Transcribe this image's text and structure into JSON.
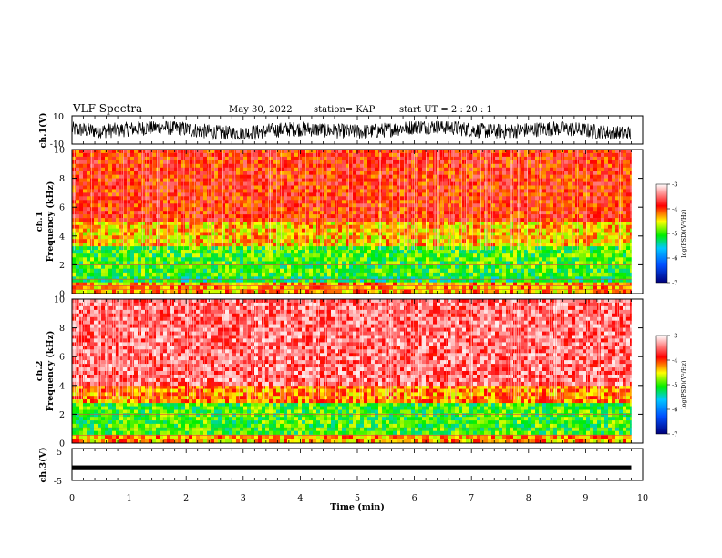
{
  "header": {
    "title": "VLF Spectra",
    "date": "May 30, 2022",
    "station": "station= KAP",
    "start": "start  UT =   2 : 20 : 1"
  },
  "chart_data": [
    {
      "type": "line",
      "name": "ch1-waveform",
      "ylabel": "ch.1(V)",
      "ylim": [
        -10,
        10
      ],
      "yticks": [
        "10",
        "-10"
      ],
      "x_range": [
        0,
        9.8
      ],
      "y_envelope_approx": [
        -6,
        6
      ],
      "color": "#000000"
    },
    {
      "type": "heatmap",
      "name": "ch1-spectrogram",
      "ylabel": "ch.1\nFrequency  (kHz)",
      "ylim": [
        0,
        10
      ],
      "yticks": [
        "0",
        "2",
        "4",
        "6",
        "8",
        "10"
      ],
      "x_range": [
        0,
        9.8
      ],
      "bands_khz": [
        {
          "from": 0.0,
          "to": 0.8,
          "level": -4.3
        },
        {
          "from": 0.8,
          "to": 1.2,
          "level": -5.2
        },
        {
          "from": 1.2,
          "to": 3.3,
          "level": -5.0
        },
        {
          "from": 3.3,
          "to": 5.0,
          "level": -4.4
        },
        {
          "from": 5.0,
          "to": 10.0,
          "level": -3.9
        }
      ],
      "colorbar": {
        "label": "log(PSD)(V²/Hz)",
        "range": [
          -7,
          -3
        ],
        "ticks": [
          "-3",
          "-4",
          "-5",
          "-6",
          "-7"
        ]
      }
    },
    {
      "type": "heatmap",
      "name": "ch2-spectrogram",
      "ylabel": "ch.2\nFrequency  (kHz)",
      "ylim": [
        0,
        10
      ],
      "yticks": [
        "0",
        "2",
        "4",
        "6",
        "8",
        "10"
      ],
      "x_range": [
        0,
        9.8
      ],
      "bands_khz": [
        {
          "from": 0.0,
          "to": 0.6,
          "level": -4.3
        },
        {
          "from": 0.6,
          "to": 2.8,
          "level": -5.0
        },
        {
          "from": 2.8,
          "to": 4.0,
          "level": -4.2
        },
        {
          "from": 4.0,
          "to": 10.0,
          "level": -3.5
        }
      ],
      "colorbar": {
        "label": "log(PSD)(V²/Hz)",
        "range": [
          -7,
          -3
        ],
        "ticks": [
          "-3",
          "-4",
          "-5",
          "-6",
          "-7"
        ]
      }
    },
    {
      "type": "line",
      "name": "ch3-waveform",
      "ylabel": "ch.3(V)",
      "ylim": [
        -5,
        5
      ],
      "yticks": [
        "5",
        "-5"
      ],
      "x_range": [
        0,
        9.8
      ],
      "y_band_approx": [
        -1.5,
        -0.3
      ],
      "color": "#000000"
    }
  ],
  "x_axis": {
    "label": "Time  (min)",
    "xlim": [
      0,
      10
    ],
    "ticks": [
      "0",
      "1",
      "2",
      "3",
      "4",
      "5",
      "6",
      "7",
      "8",
      "9",
      "10"
    ]
  },
  "colors": {
    "low": "#00007a",
    "mid_low": "#00aaff",
    "mid": "#00ee00",
    "mid_high": "#ffff00",
    "high": "#ff0000",
    "top": "#ffffff"
  }
}
